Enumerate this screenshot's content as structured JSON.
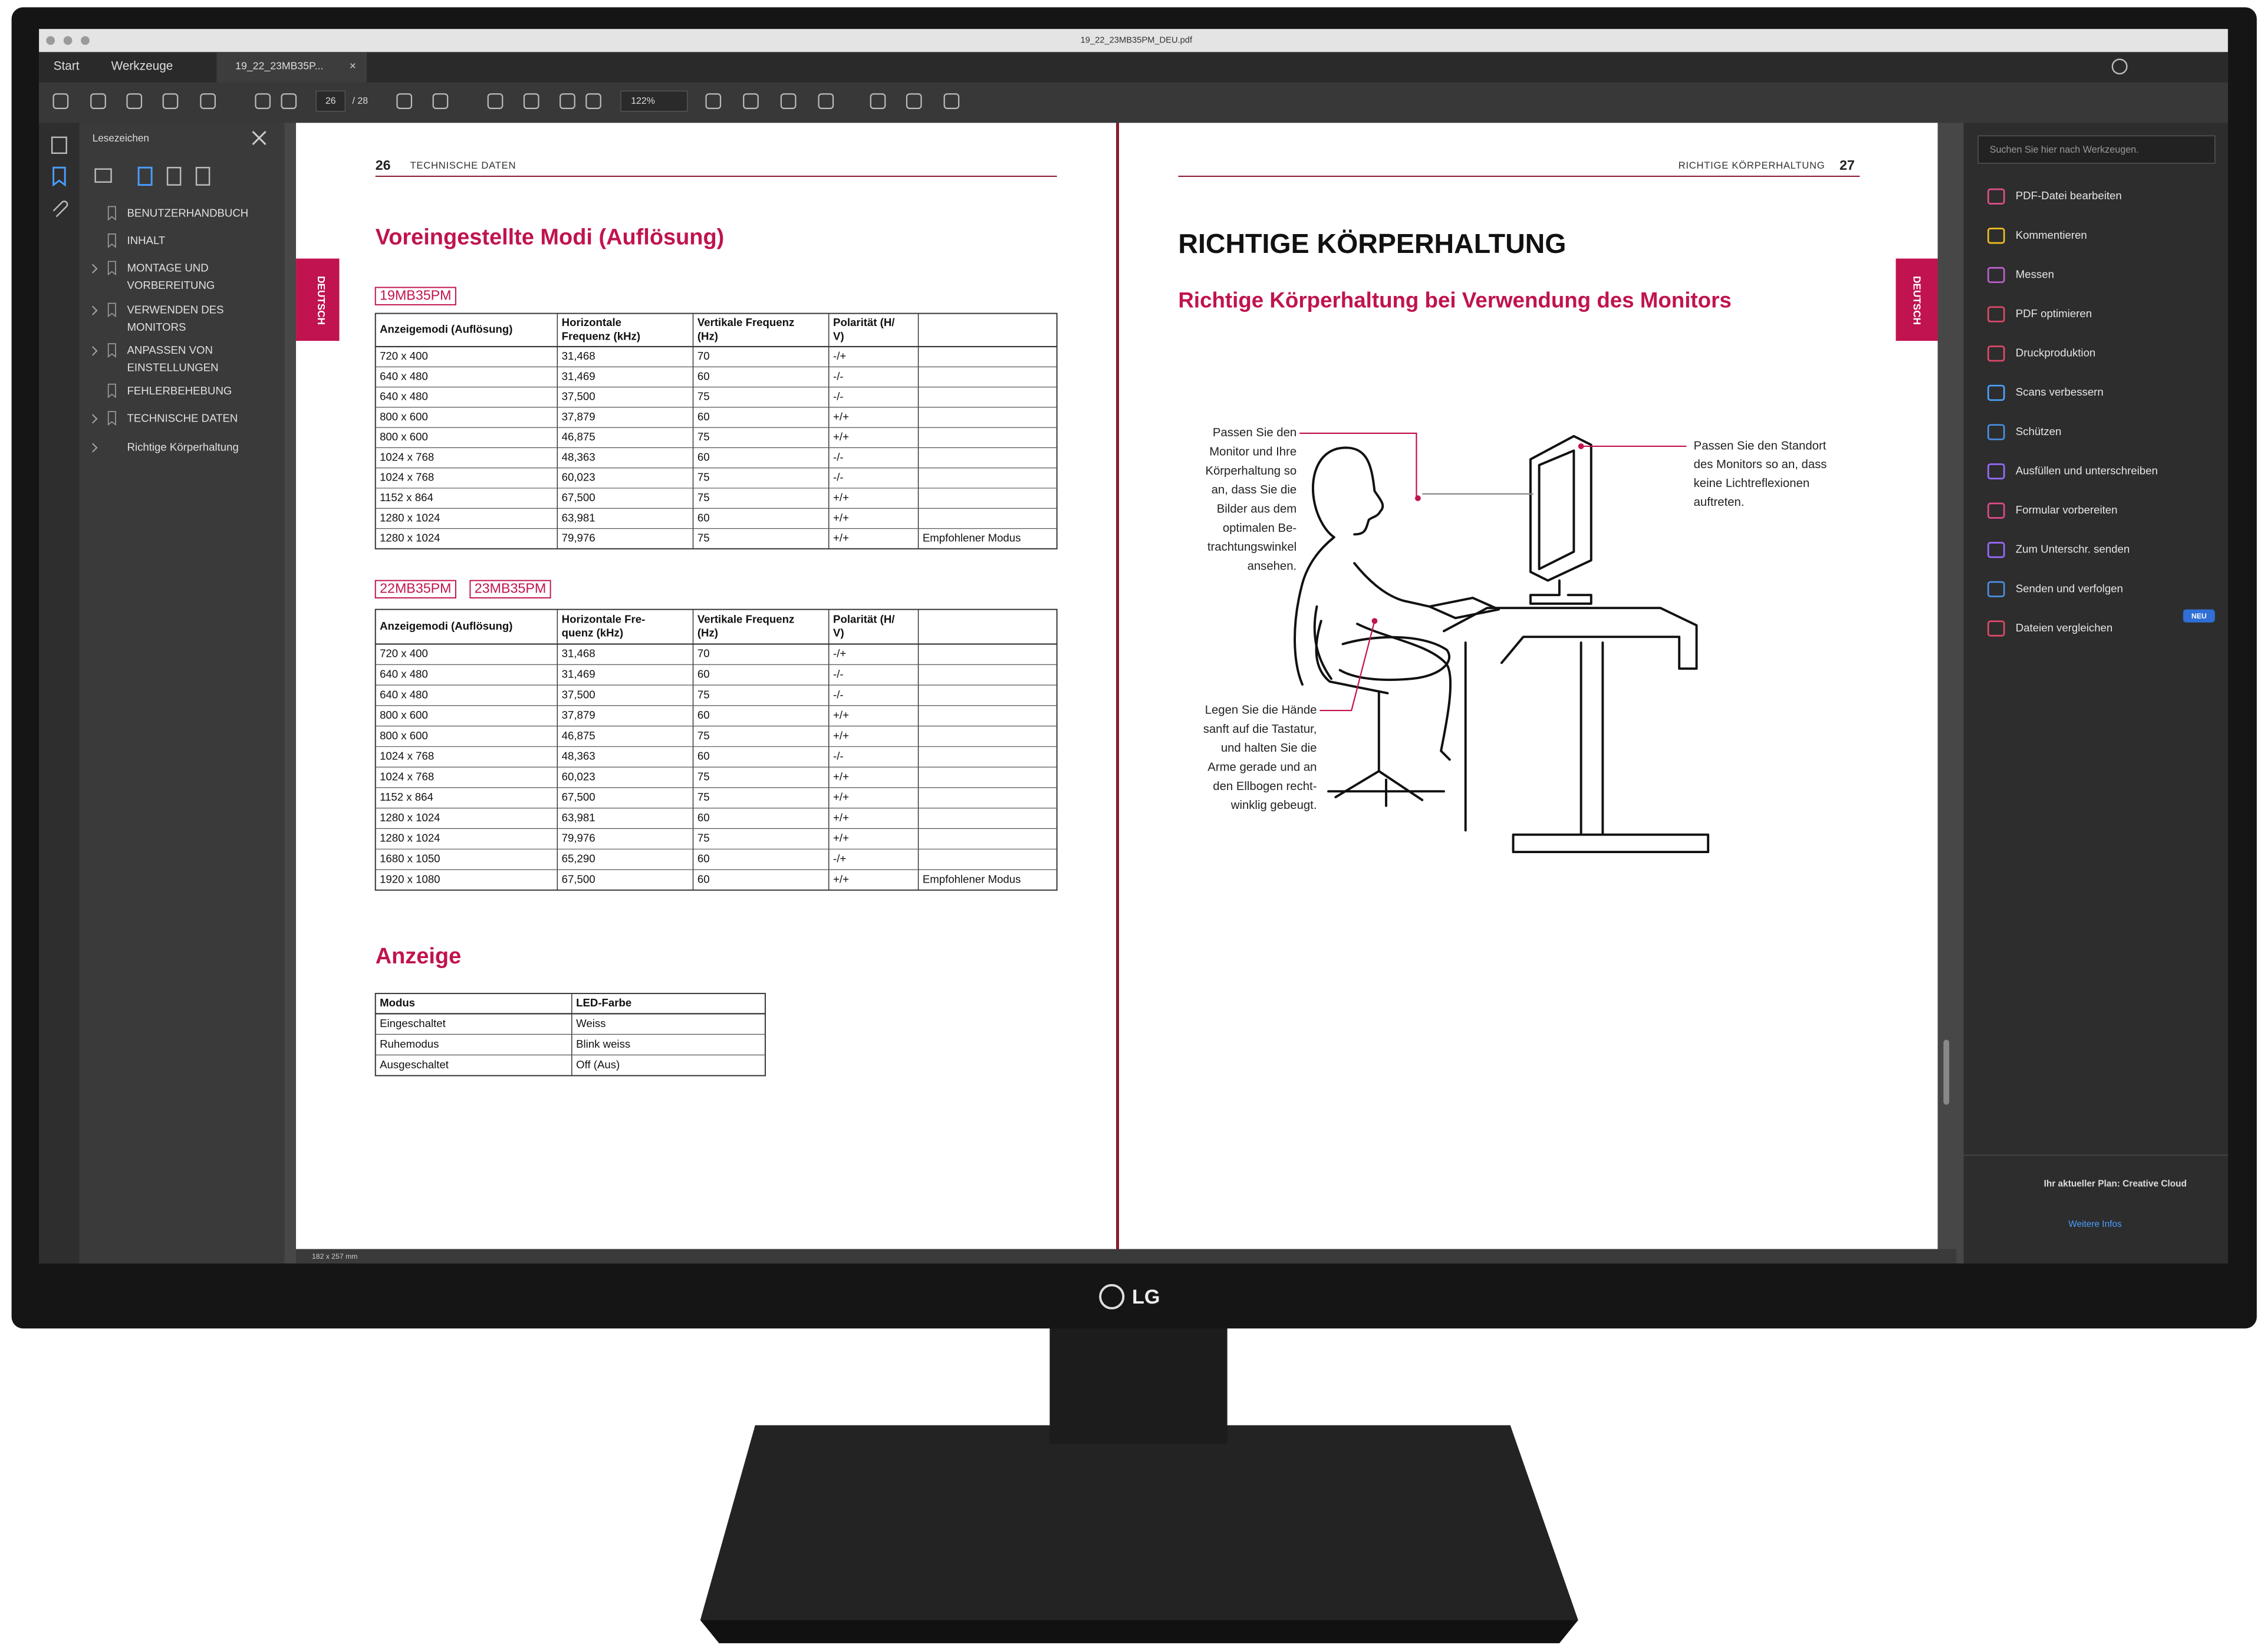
{
  "window": {
    "title": "19_22_23MB35PM_DEU.pdf"
  },
  "tabs": [
    "Start",
    "Werkzeuge",
    "19_22_23MB35P..."
  ],
  "toolbar": {
    "page": "26",
    "page_count": "/ 28",
    "zoom": "122%"
  },
  "bookmarks": {
    "title": "Lesezeichen",
    "items": [
      [
        "BENUTZERHANDBUCH"
      ],
      [
        "INHALT"
      ],
      [
        "MONTAGE UND",
        "VORBEREITUNG"
      ],
      [
        "VERWENDEN DES",
        "MONITORS"
      ],
      [
        "ANPASSEN VON",
        "EINSTELLUNGEN"
      ],
      [
        "FEHLERBEHEBUNG"
      ],
      [
        "TECHNISCHE DATEN"
      ],
      [
        "Richtige Körperhaltung"
      ]
    ]
  },
  "left_page": {
    "number": "26",
    "header": "TECHNISCHE DATEN",
    "side_tab": "DEUTSCH",
    "heading": "Voreingestellte Modi (Auflösung)",
    "model_group_1": [
      "19MB35PM"
    ],
    "table_1": {
      "header": [
        [
          "Anzeigemodi (Auflösung)"
        ],
        [
          "Horizontale",
          "Frequenz (kHz)"
        ],
        [
          "Vertikale Frequenz",
          "(Hz)"
        ],
        [
          "Polarität (H/",
          "V)"
        ]
      ],
      "rows": [
        [
          "720 x 400",
          "31,468",
          "70",
          "-/+"
        ],
        [
          "640 x 480",
          "31,469",
          "60",
          "-/-"
        ],
        [
          "640 x 480",
          "37,500",
          "75",
          "-/-"
        ],
        [
          "800 x 600",
          "37,879",
          "60",
          "+/+"
        ],
        [
          "800 x 600",
          "46,875",
          "75",
          "+/+"
        ],
        [
          "1024 x 768",
          "48,363",
          "60",
          "-/-"
        ],
        [
          "1024 x 768",
          "60,023",
          "75",
          "-/-"
        ],
        [
          "1152 x 864",
          "67,500",
          "75",
          "+/+"
        ],
        [
          "1280 x 1024",
          "63,981",
          "60",
          "+/+"
        ],
        [
          "1280 x 1024",
          "79,976",
          "75",
          "+/+",
          "Empfohlener Modus"
        ]
      ]
    },
    "model_group_2": [
      "22MB35PM",
      "23MB35PM"
    ],
    "table_2": {
      "header": [
        [
          "Anzeigemodi (Auflösung)"
        ],
        [
          "Horizontale Fre-",
          "quenz (kHz)"
        ],
        [
          "Vertikale Frequenz",
          "(Hz)"
        ],
        [
          "Polarität (H/",
          "V)"
        ]
      ],
      "rows": [
        [
          "720 x 400",
          "31,468",
          "70",
          "-/+"
        ],
        [
          "640 x 480",
          "31,469",
          "60",
          "-/-"
        ],
        [
          "640 x 480",
          "37,500",
          "75",
          "-/-"
        ],
        [
          "800 x 600",
          "37,879",
          "60",
          "+/+"
        ],
        [
          "800 x 600",
          "46,875",
          "75",
          "+/+"
        ],
        [
          "1024 x 768",
          "48,363",
          "60",
          "-/-"
        ],
        [
          "1024 x 768",
          "60,023",
          "75",
          "+/+"
        ],
        [
          "1152 x 864",
          "67,500",
          "75",
          "+/+"
        ],
        [
          "1280 x 1024",
          "63,981",
          "60",
          "+/+"
        ],
        [
          "1280 x 1024",
          "79,976",
          "75",
          "+/+"
        ],
        [
          "1680 x 1050",
          "65,290",
          "60",
          "-/+"
        ],
        [
          "1920 x 1080",
          "67,500",
          "60",
          "+/+",
          "Empfohlener Modus"
        ]
      ]
    },
    "heading_2": "Anzeige",
    "table_3": {
      "header": [
        [
          "Modus"
        ],
        [
          "LED-Farbe"
        ]
      ],
      "rows": [
        [
          "Eingeschaltet",
          "Weiss"
        ],
        [
          "Ruhemodus",
          "Blink weiss"
        ],
        [
          "Ausgeschaltet",
          "Off (Aus)"
        ]
      ]
    }
  },
  "right_page": {
    "number": "27",
    "header": "RICHTIGE KÖRPERHALTUNG",
    "side_tab": "DEUTSCH",
    "title": "RICHTIGE KÖRPERHALTUNG",
    "subtitle": "Richtige Körperhaltung bei Verwendung des Monitors",
    "callout_view": [
      "Passen Sie den",
      "Monitor und Ihre",
      "Körperhaltung so",
      "an, dass Sie die",
      "Bilder aus dem",
      "optimalen Be-",
      "trachtungswinkel",
      "ansehen."
    ],
    "callout_position": [
      "Passen Sie den Standort",
      "des Monitors so an, dass",
      "keine Lichtreflexionen",
      "auftreten."
    ],
    "callout_hands": [
      "Legen Sie die Hände",
      "sanft auf die Tastatur,",
      "und halten Sie die",
      "Arme gerade und an",
      "den Ellbogen recht-",
      "winklig gebeugt."
    ]
  },
  "tools_pane": {
    "search": "Suchen Sie hier nach Werkzeugen.",
    "tools": [
      "PDF-Datei bearbeiten",
      "Kommentieren",
      "Messen",
      "PDF optimieren",
      "Druckproduktion",
      "Scans verbessern",
      "Schützen",
      "Ausfüllen und unterschreiben",
      "Formular vorbereiten",
      "Zum Unterschr. senden",
      "Senden und verfolgen",
      "Dateien vergleichen"
    ],
    "new_badge": "NEU",
    "plan": "Ihr aktueller Plan: Creative Cloud",
    "more_info": "Weitere Infos"
  },
  "status": {
    "page_size": "182 x 257 mm"
  },
  "brand": "LG"
}
